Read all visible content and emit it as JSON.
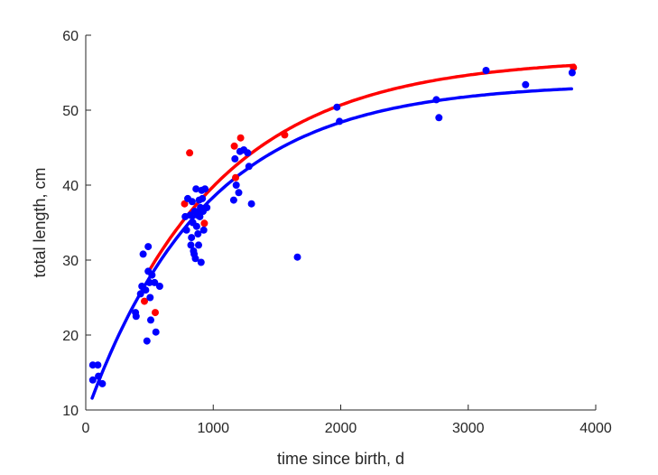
{
  "chart_data": {
    "type": "scatter",
    "xlabel": "time since birth, d",
    "ylabel": "total length, cm",
    "xlim": [
      0,
      4000
    ],
    "ylim": [
      10,
      60
    ],
    "x_ticks": [
      0,
      1000,
      2000,
      3000,
      4000
    ],
    "y_ticks": [
      10,
      20,
      30,
      40,
      50,
      60
    ],
    "grid": false,
    "legend": "none",
    "colors": {
      "red": "#ff0000",
      "blue": "#0000ff",
      "axis": "#262626"
    },
    "series": [
      {
        "color": "#ff0000",
        "kind": "points",
        "points": [
          [
            460,
            24.5
          ],
          [
            545,
            23.0
          ],
          [
            775,
            37.5
          ],
          [
            815,
            44.3
          ],
          [
            930,
            34.9
          ],
          [
            1165,
            45.2
          ],
          [
            1175,
            41.0
          ],
          [
            1215,
            46.3
          ],
          [
            1560,
            46.7
          ],
          [
            3825,
            55.7
          ]
        ]
      },
      {
        "color": "#0000ff",
        "kind": "points",
        "points": [
          [
            55,
            16.0
          ],
          [
            95,
            16.0
          ],
          [
            55,
            14.0
          ],
          [
            100,
            14.5
          ],
          [
            130,
            13.5
          ],
          [
            390,
            23.0
          ],
          [
            395,
            22.5
          ],
          [
            430,
            25.5
          ],
          [
            440,
            26.5
          ],
          [
            450,
            30.8
          ],
          [
            470,
            26.0
          ],
          [
            480,
            19.2
          ],
          [
            490,
            31.8
          ],
          [
            490,
            28.5
          ],
          [
            500,
            27.0
          ],
          [
            505,
            25.0
          ],
          [
            510,
            22.0
          ],
          [
            520,
            28.0
          ],
          [
            540,
            27.0
          ],
          [
            550,
            20.4
          ],
          [
            580,
            26.5
          ],
          [
            780,
            35.8
          ],
          [
            790,
            34.0
          ],
          [
            800,
            38.2
          ],
          [
            820,
            36.0
          ],
          [
            825,
            32.0
          ],
          [
            830,
            33.0
          ],
          [
            835,
            37.8
          ],
          [
            840,
            35.0
          ],
          [
            845,
            31.2
          ],
          [
            850,
            30.8
          ],
          [
            855,
            36.5
          ],
          [
            860,
            30.2
          ],
          [
            865,
            39.5
          ],
          [
            870,
            34.5
          ],
          [
            875,
            36.0
          ],
          [
            880,
            33.5
          ],
          [
            885,
            32.0
          ],
          [
            890,
            38.0
          ],
          [
            895,
            35.8
          ],
          [
            900,
            37.0
          ],
          [
            905,
            29.7
          ],
          [
            910,
            39.3
          ],
          [
            915,
            38.2
          ],
          [
            920,
            36.5
          ],
          [
            925,
            34.0
          ],
          [
            935,
            39.5
          ],
          [
            950,
            37.0
          ],
          [
            1160,
            38.0
          ],
          [
            1170,
            43.5
          ],
          [
            1180,
            40.0
          ],
          [
            1200,
            39.0
          ],
          [
            1210,
            44.5
          ],
          [
            1240,
            44.7
          ],
          [
            1270,
            44.3
          ],
          [
            1280,
            42.5
          ],
          [
            1300,
            37.5
          ],
          [
            1660,
            30.4
          ],
          [
            1970,
            50.4
          ],
          [
            1990,
            48.5
          ],
          [
            2750,
            51.4
          ],
          [
            2770,
            49.0
          ],
          [
            3140,
            55.3
          ],
          [
            3450,
            53.4
          ],
          [
            3815,
            55.0
          ]
        ]
      },
      {
        "color": "#ff0000",
        "kind": "curve",
        "model": "von-bertalanffy",
        "Linf": 57.0,
        "L0": 10.3,
        "k": 0.001,
        "x_range": [
          500,
          3830
        ]
      },
      {
        "color": "#0000ff",
        "kind": "curve",
        "model": "von-bertalanffy",
        "Linf": 53.6,
        "L0": 9.27,
        "k": 0.00107,
        "x_range": [
          50,
          3810
        ]
      }
    ]
  }
}
